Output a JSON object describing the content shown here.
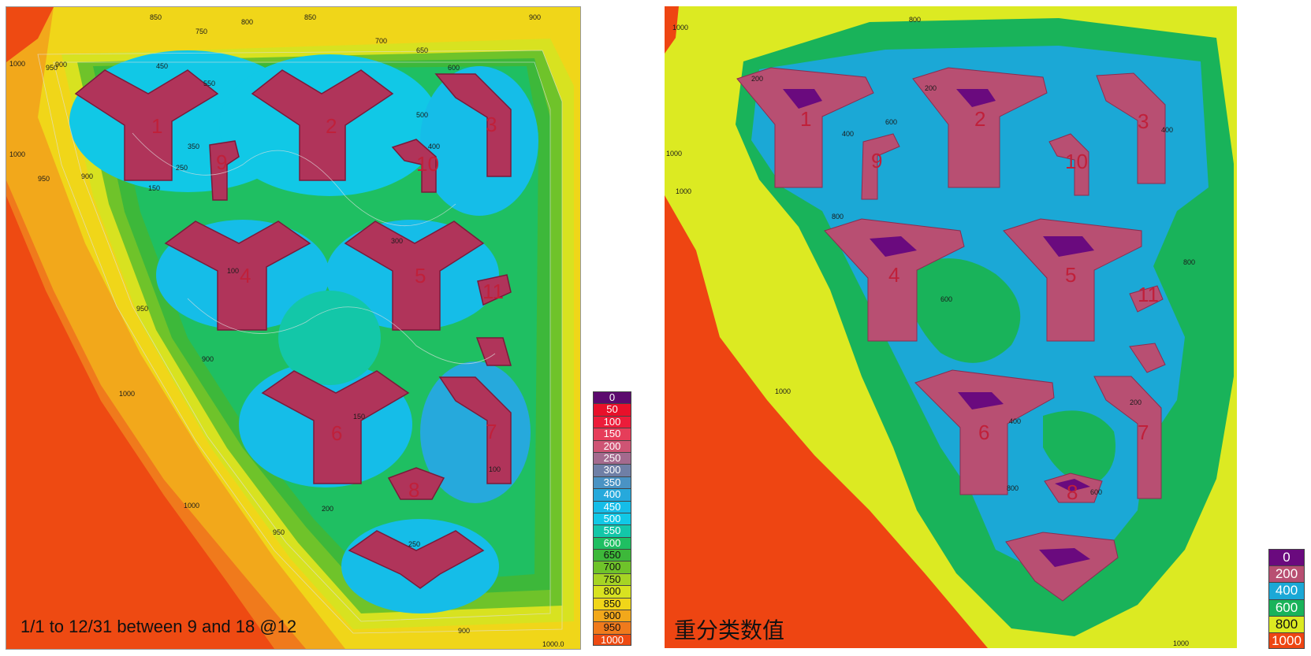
{
  "left_panel": {
    "caption": "1/1 to 12/31 between 9 and 18 @12",
    "legend": [
      {
        "value": "0",
        "color": "#5c0a6e"
      },
      {
        "value": "50",
        "color": "#e8102a"
      },
      {
        "value": "100",
        "color": "#ec1c3a"
      },
      {
        "value": "150",
        "color": "#e63d5a"
      },
      {
        "value": "200",
        "color": "#cf5474"
      },
      {
        "value": "250",
        "color": "#a46a8e"
      },
      {
        "value": "300",
        "color": "#6f7fa6"
      },
      {
        "value": "350",
        "color": "#4a93c4"
      },
      {
        "value": "400",
        "color": "#26a9dc"
      },
      {
        "value": "450",
        "color": "#15bde8"
      },
      {
        "value": "500",
        "color": "#11c8e6"
      },
      {
        "value": "550",
        "color": "#13c7a8"
      },
      {
        "value": "600",
        "color": "#1fbf62"
      },
      {
        "value": "650",
        "color": "#3db83a"
      },
      {
        "value": "700",
        "color": "#6fc32a"
      },
      {
        "value": "750",
        "color": "#a6d424"
      },
      {
        "value": "800",
        "color": "#d8e220"
      },
      {
        "value": "850",
        "color": "#f0d619"
      },
      {
        "value": "900",
        "color": "#f2a81b"
      },
      {
        "value": "950",
        "color": "#f07a1c"
      },
      {
        "value": "1000",
        "color": "#ee4a12"
      }
    ],
    "building_numbers": [
      "1",
      "2",
      "3",
      "4",
      "5",
      "6",
      "7",
      "8",
      "9",
      "10",
      "11"
    ],
    "contour_labels": [
      "850",
      "800",
      "750",
      "700",
      "650",
      "600",
      "550",
      "500",
      "450",
      "400",
      "350",
      "300",
      "250",
      "200",
      "150",
      "100",
      "900",
      "950",
      "1000",
      "1000.0"
    ]
  },
  "right_panel": {
    "caption": "重分类数值",
    "legend": [
      {
        "value": "0",
        "color": "#6a0a7e"
      },
      {
        "value": "200",
        "color": "#b84f72"
      },
      {
        "value": "400",
        "color": "#1ba8d6"
      },
      {
        "value": "600",
        "color": "#19b35a"
      },
      {
        "value": "800",
        "color": "#dcea22"
      },
      {
        "value": "1000",
        "color": "#ee4512"
      }
    ],
    "building_numbers": [
      "1",
      "2",
      "3",
      "4",
      "5",
      "6",
      "7",
      "8",
      "9",
      "10",
      "11"
    ],
    "contour_labels": [
      "1000",
      "800",
      "600",
      "400",
      "200"
    ]
  }
}
